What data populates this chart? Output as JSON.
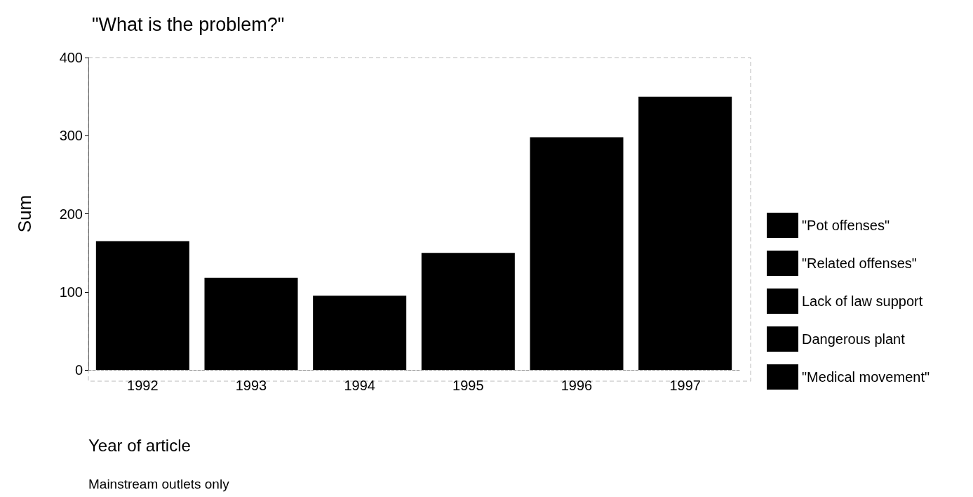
{
  "chart_data": {
    "type": "bar",
    "title": "\"What is the problem?\"",
    "xlabel": "Year of article",
    "ylabel": "Sum",
    "annotations": [
      "Mainstream outlets only"
    ],
    "categories": [
      "1992",
      "1993",
      "1994",
      "1995",
      "1996",
      "1997"
    ],
    "values": [
      165,
      118,
      95,
      150,
      298,
      350
    ],
    "color": "#000000",
    "stacked": true,
    "series": [
      {
        "name": "\"Pot offenses\"",
        "color": "#000000",
        "values": [
          null,
          null,
          null,
          null,
          null,
          null
        ]
      },
      {
        "name": "\"Related offenses\"",
        "color": "#000000",
        "values": [
          null,
          null,
          null,
          null,
          null,
          null
        ]
      },
      {
        "name": "Lack of law support",
        "color": "#000000",
        "values": [
          null,
          null,
          null,
          null,
          null,
          null
        ]
      },
      {
        "name": "Dangerous plant",
        "color": "#000000",
        "values": [
          null,
          null,
          null,
          null,
          null,
          null
        ]
      },
      {
        "name": "\"Medical movement\"",
        "color": "#000000",
        "values": [
          null,
          null,
          null,
          null,
          null,
          null
        ]
      }
    ],
    "ylim": [
      0,
      400
    ],
    "yticks": [
      0,
      100,
      200,
      300,
      400
    ],
    "grid": false,
    "legend": "right"
  }
}
